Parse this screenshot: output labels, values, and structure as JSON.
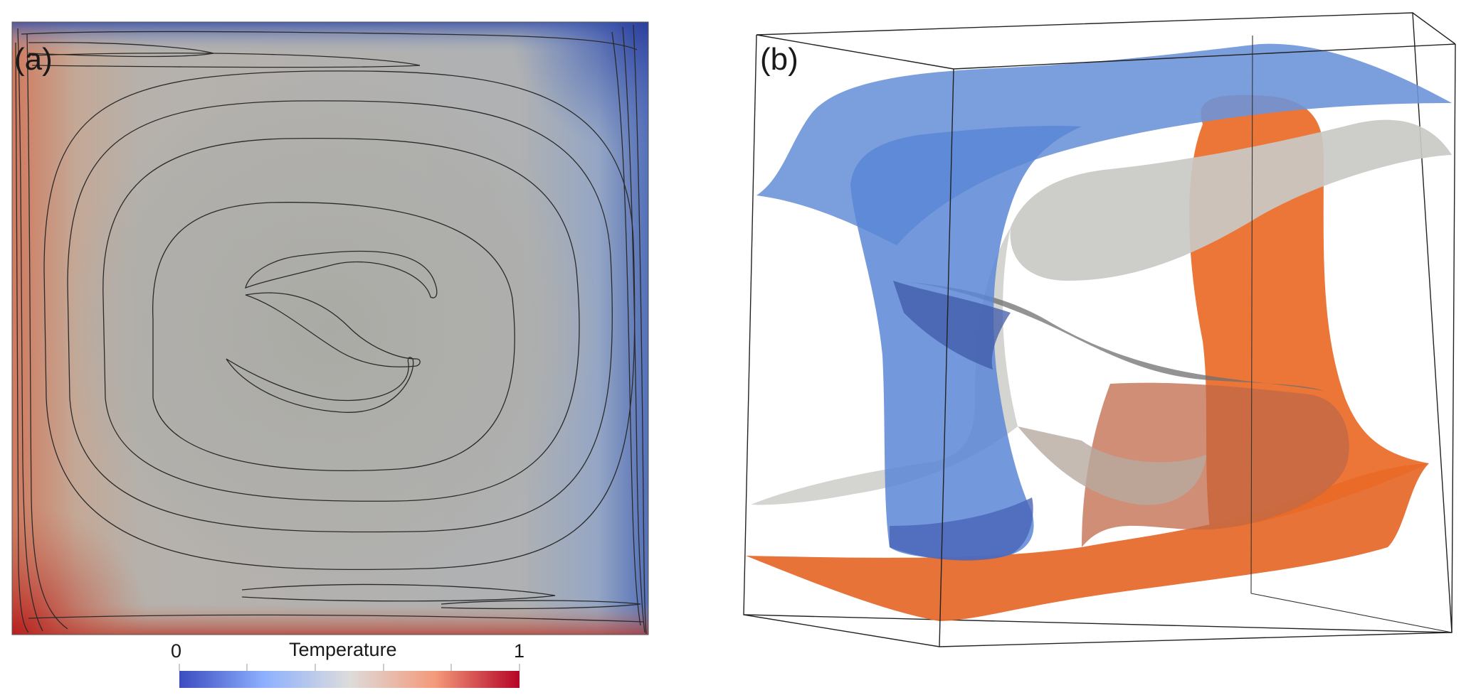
{
  "figure": {
    "panel_a_label": "(a)",
    "panel_b_label": "(b)"
  },
  "colorbar": {
    "title": "Temperature",
    "min_label": "0",
    "max_label": "1",
    "colors": [
      "#3b4cc0",
      "#8db0fe",
      "#dddcdc",
      "#f49a7b",
      "#b40426"
    ]
  },
  "isosurfaces": {
    "cold_color": "#5b86d6",
    "neutral_color": "#c8c8c6",
    "hot_color": "#e9652a"
  }
}
